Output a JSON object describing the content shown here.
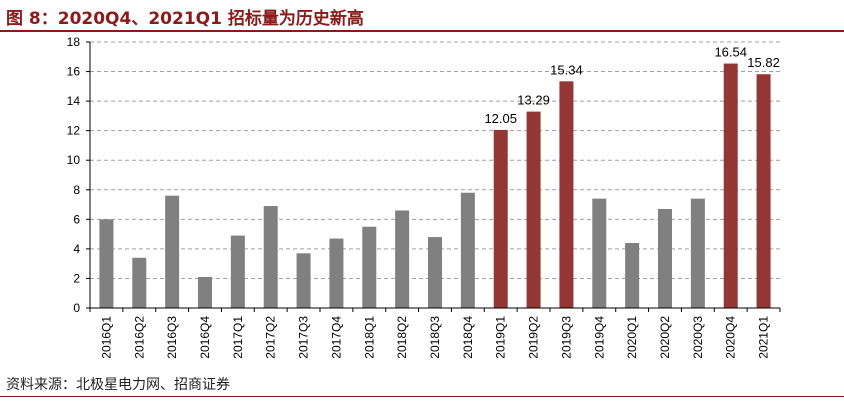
{
  "figure": {
    "title": "图 8：2020Q4、2021Q1 招标量为历史新高",
    "source": "资料来源：北极星电力网、招商证券"
  },
  "colors": {
    "default_bar": "#808080",
    "highlight_bar": "#943634",
    "title": "#8B1A1A",
    "grid": "#a0a0a0"
  },
  "chart_data": {
    "type": "bar",
    "title": "",
    "xlabel": "",
    "ylabel": "",
    "ylim": [
      0,
      18
    ],
    "yticks": [
      0,
      2,
      4,
      6,
      8,
      10,
      12,
      14,
      16,
      18
    ],
    "grid": true,
    "legend": "none",
    "categories": [
      "2016Q1",
      "2016Q2",
      "2016Q3",
      "2016Q4",
      "2017Q1",
      "2017Q2",
      "2017Q3",
      "2017Q4",
      "2018Q1",
      "2018Q2",
      "2018Q3",
      "2018Q4",
      "2019Q1",
      "2019Q2",
      "2019Q3",
      "2019Q4",
      "2020Q1",
      "2020Q2",
      "2020Q3",
      "2020Q4",
      "2021Q1"
    ],
    "values": [
      6.0,
      3.4,
      7.6,
      2.1,
      4.9,
      6.9,
      3.7,
      4.7,
      5.5,
      6.6,
      4.8,
      7.8,
      12.05,
      13.29,
      15.34,
      7.4,
      4.4,
      6.7,
      7.4,
      16.54,
      15.82
    ],
    "highlighted": [
      false,
      false,
      false,
      false,
      false,
      false,
      false,
      false,
      false,
      false,
      false,
      false,
      true,
      true,
      true,
      false,
      false,
      false,
      false,
      true,
      true
    ],
    "data_labels": {
      "12": "12.05",
      "13": "13.29",
      "14": "15.34",
      "19": "16.54",
      "20": "15.82"
    }
  }
}
